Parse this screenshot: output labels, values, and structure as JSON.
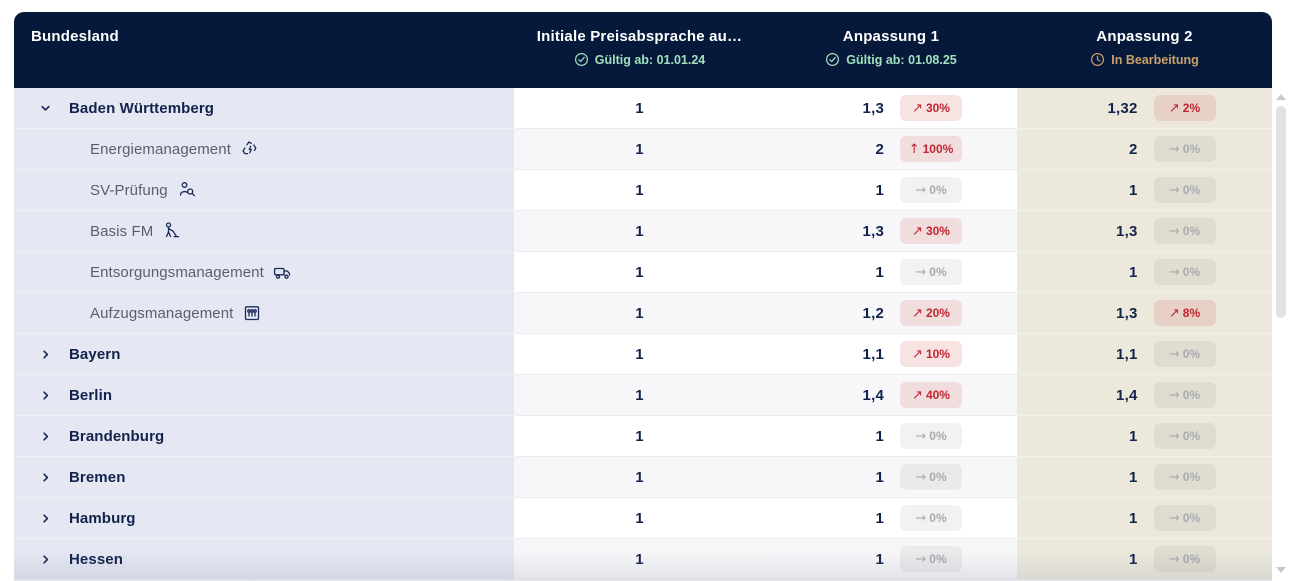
{
  "header": {
    "columns": [
      {
        "id": "bundesland",
        "label": "Bundesland"
      },
      {
        "id": "initial",
        "label": "Initiale Preisabsprache au…",
        "status_label": "Gültig ab: 01.01.24",
        "status": "valid"
      },
      {
        "id": "anpassung1",
        "label": "Anpassung 1",
        "status_label": "Gültig ab: 01.08.25",
        "status": "valid"
      },
      {
        "id": "anpassung2",
        "label": "Anpassung 2",
        "status_label": "In Bearbeitung",
        "status": "in_progress"
      }
    ]
  },
  "rows": [
    {
      "label": "Baden Württemberg",
      "level": "parent",
      "expanded": true,
      "icon": null,
      "initial": "1",
      "anpassung1": {
        "value": "1,3",
        "change": "30%",
        "direction": "up-right"
      },
      "anpassung2": {
        "value": "1,32",
        "change": "2%",
        "direction": "up-right"
      }
    },
    {
      "label": "Energiemanagement",
      "level": "child",
      "icon": "recycle-energy",
      "initial": "1",
      "anpassung1": {
        "value": "2",
        "change": "100%",
        "direction": "up"
      },
      "anpassung2": {
        "value": "2",
        "change": "0%",
        "direction": "flat"
      }
    },
    {
      "label": "SV-Prüfung",
      "level": "child",
      "icon": "inspector",
      "initial": "1",
      "anpassung1": {
        "value": "1",
        "change": "0%",
        "direction": "flat"
      },
      "anpassung2": {
        "value": "1",
        "change": "0%",
        "direction": "flat"
      }
    },
    {
      "label": "Basis FM",
      "level": "child",
      "icon": "cleaner",
      "initial": "1",
      "anpassung1": {
        "value": "1,3",
        "change": "30%",
        "direction": "up-right"
      },
      "anpassung2": {
        "value": "1,3",
        "change": "0%",
        "direction": "flat"
      }
    },
    {
      "label": "Entsorgungsmanagement",
      "level": "child",
      "icon": "waste-truck",
      "initial": "1",
      "anpassung1": {
        "value": "1",
        "change": "0%",
        "direction": "flat"
      },
      "anpassung2": {
        "value": "1",
        "change": "0%",
        "direction": "flat"
      }
    },
    {
      "label": "Aufzugsmanagement",
      "level": "child",
      "icon": "elevator",
      "initial": "1",
      "anpassung1": {
        "value": "1,2",
        "change": "20%",
        "direction": "up-right"
      },
      "anpassung2": {
        "value": "1,3",
        "change": "8%",
        "direction": "up-right"
      }
    },
    {
      "label": "Bayern",
      "level": "parent",
      "expanded": false,
      "icon": null,
      "initial": "1",
      "anpassung1": {
        "value": "1,1",
        "change": "10%",
        "direction": "up-right"
      },
      "anpassung2": {
        "value": "1,1",
        "change": "0%",
        "direction": "flat"
      }
    },
    {
      "label": "Berlin",
      "level": "parent",
      "expanded": false,
      "icon": null,
      "initial": "1",
      "anpassung1": {
        "value": "1,4",
        "change": "40%",
        "direction": "up-right"
      },
      "anpassung2": {
        "value": "1,4",
        "change": "0%",
        "direction": "flat"
      }
    },
    {
      "label": "Brandenburg",
      "level": "parent",
      "expanded": false,
      "icon": null,
      "initial": "1",
      "anpassung1": {
        "value": "1",
        "change": "0%",
        "direction": "flat"
      },
      "anpassung2": {
        "value": "1",
        "change": "0%",
        "direction": "flat"
      }
    },
    {
      "label": "Bremen",
      "level": "parent",
      "expanded": false,
      "icon": null,
      "initial": "1",
      "anpassung1": {
        "value": "1",
        "change": "0%",
        "direction": "flat"
      },
      "anpassung2": {
        "value": "1",
        "change": "0%",
        "direction": "flat"
      }
    },
    {
      "label": "Hamburg",
      "level": "parent",
      "expanded": false,
      "icon": null,
      "initial": "1",
      "anpassung1": {
        "value": "1",
        "change": "0%",
        "direction": "flat"
      },
      "anpassung2": {
        "value": "1",
        "change": "0%",
        "direction": "flat"
      }
    },
    {
      "label": "Hessen",
      "level": "parent",
      "expanded": false,
      "icon": null,
      "initial": "1",
      "anpassung1": {
        "value": "1",
        "change": "0%",
        "direction": "flat"
      },
      "anpassung2": {
        "value": "1",
        "change": "0%",
        "direction": "flat"
      }
    }
  ],
  "colors": {
    "header_bg": "#06193a",
    "status_valid_green": "#9fe0bd",
    "status_progress_gold": "#c9a168",
    "navy_text": "#12234d",
    "child_text": "#5b5d75",
    "increase_red": "#bf2730",
    "increase_badge_bg": "#f6dede",
    "neutral_gray": "#a9aaae",
    "neutral_badge_bg": "#f1f1f2",
    "bundesland_col_bg": "#e5e7f2",
    "anpassung2_col_bg": "#ece9dc",
    "stripe_bg": "#f7f7f9"
  }
}
